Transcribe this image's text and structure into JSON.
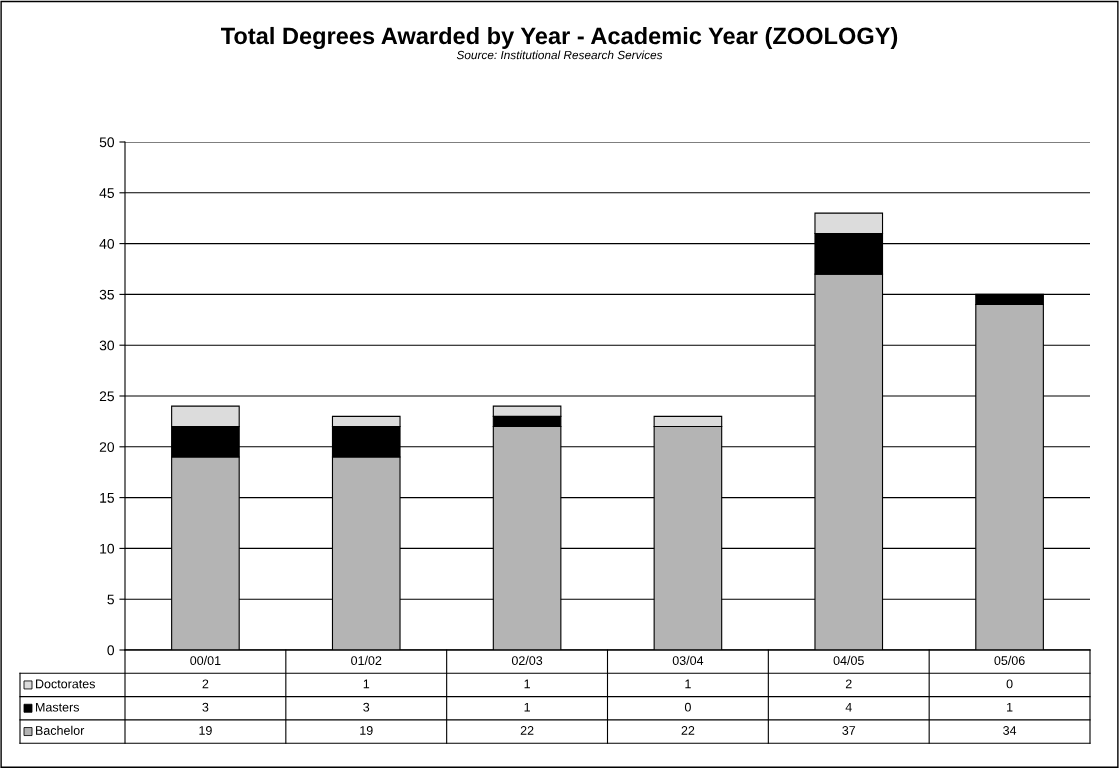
{
  "chart_data": {
    "type": "bar",
    "title": "Total Degrees Awarded by Year - Academic Year (ZOOLOGY)",
    "subtitle": "Source: Institutional Research Services",
    "categories": [
      "00/01",
      "01/02",
      "02/03",
      "03/04",
      "04/05",
      "05/06"
    ],
    "stacked": true,
    "series": [
      {
        "name": "Bachelor",
        "color": "#b4b4b4",
        "values": [
          19,
          19,
          22,
          22,
          37,
          34
        ]
      },
      {
        "name": "Masters",
        "color": "#000000",
        "values": [
          3,
          3,
          1,
          0,
          4,
          1
        ]
      },
      {
        "name": "Doctorates",
        "color": "#dcdcdc",
        "values": [
          2,
          1,
          1,
          1,
          2,
          0
        ]
      }
    ],
    "ylim": [
      0,
      50
    ],
    "yticks": [
      0,
      5,
      10,
      15,
      20,
      25,
      30,
      35,
      40,
      45,
      50
    ],
    "grid": "y",
    "data_labels": true,
    "legend": "bottom left"
  }
}
